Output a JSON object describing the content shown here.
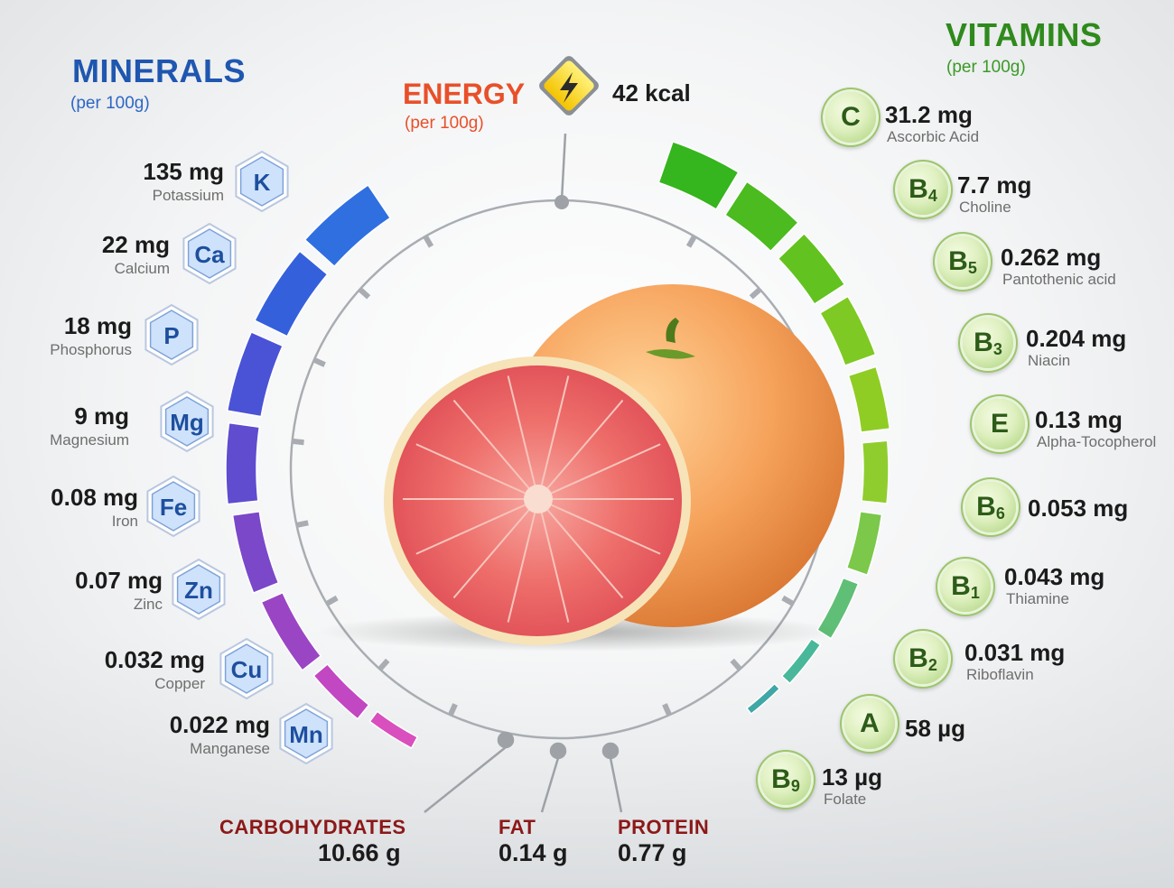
{
  "minerals_header": {
    "title": "MINERALS",
    "sub": "(per 100g)"
  },
  "vitamins_header": {
    "title": "VITAMINS",
    "sub": "(per 100g)"
  },
  "energy": {
    "title": "ENERGY",
    "sub": "(per 100g)",
    "value": "42 kcal"
  },
  "minerals": [
    {
      "symbol": "K",
      "value": "135 mg",
      "name": "Potassium"
    },
    {
      "symbol": "Ca",
      "value": "22 mg",
      "name": "Calcium"
    },
    {
      "symbol": "P",
      "value": "18 mg",
      "name": "Phosphorus"
    },
    {
      "symbol": "Mg",
      "value": "9 mg",
      "name": "Magnesium"
    },
    {
      "symbol": "Fe",
      "value": "0.08 mg",
      "name": "Iron"
    },
    {
      "symbol": "Zn",
      "value": "0.07 mg",
      "name": "Zinc"
    },
    {
      "symbol": "Cu",
      "value": "0.032 mg",
      "name": "Copper"
    },
    {
      "symbol": "Mn",
      "value": "0.022 mg",
      "name": "Manganese"
    }
  ],
  "vitamins": [
    {
      "letter": "C",
      "index": "",
      "value": "31.2 mg",
      "name": "Ascorbic Acid"
    },
    {
      "letter": "B",
      "index": "4",
      "value": "7.7 mg",
      "name": "Choline"
    },
    {
      "letter": "B",
      "index": "5",
      "value": "0.262 mg",
      "name": "Pantothenic acid"
    },
    {
      "letter": "B",
      "index": "3",
      "value": "0.204 mg",
      "name": "Niacin"
    },
    {
      "letter": "E",
      "index": "",
      "value": "0.13 mg",
      "name": "Alpha-Tocopherol"
    },
    {
      "letter": "B",
      "index": "6",
      "value": "0.053 mg",
      "name": ""
    },
    {
      "letter": "B",
      "index": "1",
      "value": "0.043 mg",
      "name": "Thiamine"
    },
    {
      "letter": "B",
      "index": "2",
      "value": "0.031 mg",
      "name": "Riboflavin"
    },
    {
      "letter": "A",
      "index": "",
      "value": "58 µg",
      "name": ""
    },
    {
      "letter": "B",
      "index": "9",
      "value": "13 µg",
      "name": "Folate"
    }
  ],
  "macros": {
    "carbohydrates": {
      "label": "CARBOHYDRATES",
      "value": "10.66 g"
    },
    "fat": {
      "label": "FAT",
      "value": "0.14 g"
    },
    "protein": {
      "label": "PROTEIN",
      "value": "0.77 g"
    }
  },
  "colors": {
    "minerals_title": "#1f57b0",
    "vitamins_title": "#2f8a1c",
    "energy_title": "#e8502a",
    "macro_label": "#8c1818",
    "grapefruit_flesh": "#ef6b6b",
    "grapefruit_peel": "#f5a15c"
  }
}
